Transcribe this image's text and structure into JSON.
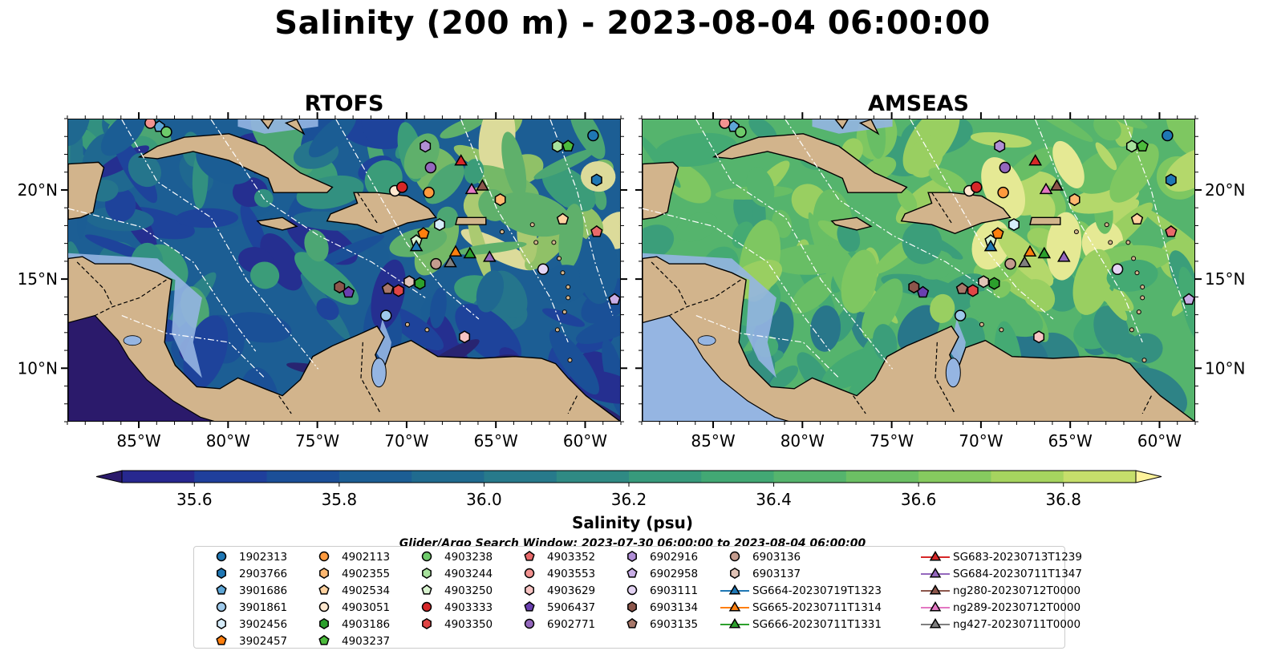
{
  "figure": {
    "title": "Salinity (200 m) - 2023-08-04 06:00:00",
    "colorbar_label": "Salinity (psu)",
    "search_window": "Glider/Argo Search Window: 2023-07-30 06:00:00 to 2023-08-04 06:00:00"
  },
  "chart_data": {
    "type": "heatmap",
    "panels": [
      {
        "name": "RTOFS",
        "tone": "fresh"
      },
      {
        "name": "AMSEAS",
        "tone": "salty"
      }
    ],
    "x_ticks": [
      "85°W",
      "80°W",
      "75°W",
      "70°W",
      "65°W",
      "60°W"
    ],
    "x_values": [
      -85,
      -80,
      -75,
      -70,
      -65,
      -60
    ],
    "y_ticks": [
      "20°N",
      "15°N",
      "10°N"
    ],
    "y_values": [
      20,
      15,
      10
    ],
    "xlim": [
      -89,
      -58
    ],
    "ylim": [
      7,
      24
    ],
    "colorbar": {
      "ticks": [
        "35.6",
        "35.8",
        "36.0",
        "36.2",
        "36.4",
        "36.6",
        "36.8"
      ],
      "tick_values": [
        35.6,
        35.8,
        36.0,
        36.2,
        36.4,
        36.6,
        36.8
      ],
      "range": [
        35.5,
        36.9
      ],
      "extend": "both",
      "colors": [
        "#2b1a6b",
        "#27288f",
        "#1f3f9c",
        "#1b4f98",
        "#1c5e94",
        "#206b8f",
        "#277a8b",
        "#2f8a84",
        "#379a7c",
        "#42a874",
        "#55b46d",
        "#6cc064",
        "#86ca5f",
        "#a6d45f",
        "#c6de6b",
        "#fff39b"
      ]
    },
    "legend": [
      {
        "label": "1902313",
        "color": "#1f77b4",
        "marker": "circle"
      },
      {
        "label": "2903766",
        "color": "#1f77b4",
        "marker": "hexagon"
      },
      {
        "label": "3901686",
        "color": "#5ea6d6",
        "marker": "pentagon"
      },
      {
        "label": "3901861",
        "color": "#9ec9ea",
        "marker": "circle"
      },
      {
        "label": "3902456",
        "color": "#d6ecfa",
        "marker": "hexagon"
      },
      {
        "label": "3902457",
        "color": "#ff7f0e",
        "marker": "pentagon"
      },
      {
        "label": "4902113",
        "color": "#ff9a3e",
        "marker": "circle"
      },
      {
        "label": "4902355",
        "color": "#ffb870",
        "marker": "hexagon"
      },
      {
        "label": "4902534",
        "color": "#ffd2a0",
        "marker": "pentagon"
      },
      {
        "label": "4903051",
        "color": "#ffe8cf",
        "marker": "circle"
      },
      {
        "label": "4903186",
        "color": "#2ca02c",
        "marker": "hexagon"
      },
      {
        "label": "4903237",
        "color": "#4cbb3c",
        "marker": "pentagon"
      },
      {
        "label": "4903238",
        "color": "#6ecb6a",
        "marker": "circle"
      },
      {
        "label": "4903244",
        "color": "#a7e19c",
        "marker": "hexagon"
      },
      {
        "label": "4903250",
        "color": "#d8f3cf",
        "marker": "pentagon"
      },
      {
        "label": "4903333",
        "color": "#d62728",
        "marker": "circle"
      },
      {
        "label": "4903350",
        "color": "#e04545",
        "marker": "hexagon"
      },
      {
        "label": "4903352",
        "color": "#e8696a",
        "marker": "pentagon"
      },
      {
        "label": "4903553",
        "color": "#f29290",
        "marker": "circle"
      },
      {
        "label": "4903629",
        "color": "#f8c4c3",
        "marker": "hexagon"
      },
      {
        "label": "5906437",
        "color": "#6a3fb0",
        "marker": "pentagon"
      },
      {
        "label": "6902771",
        "color": "#9467bd",
        "marker": "circle"
      },
      {
        "label": "6902916",
        "color": "#b08ed6",
        "marker": "hexagon"
      },
      {
        "label": "6902958",
        "color": "#c9aee6",
        "marker": "pentagon"
      },
      {
        "label": "6903111",
        "color": "#e4d4f4",
        "marker": "circle"
      },
      {
        "label": "6903134",
        "color": "#8c564b",
        "marker": "hexagon"
      },
      {
        "label": "6903135",
        "color": "#a8786a",
        "marker": "pentagon"
      },
      {
        "label": "6903136",
        "color": "#c49c8e",
        "marker": "circle"
      },
      {
        "label": "6903137",
        "color": "#e1c3b6",
        "marker": "hexagon"
      },
      {
        "label": "SG664-20230719T1323",
        "color": "#1f77b4",
        "marker": "triangle"
      },
      {
        "label": "SG665-20230711T1314",
        "color": "#ff7f0e",
        "marker": "triangle"
      },
      {
        "label": "SG666-20230711T1331",
        "color": "#2ca02c",
        "marker": "triangle"
      },
      {
        "label": "SG683-20230713T1239",
        "color": "#d62728",
        "marker": "triangle"
      },
      {
        "label": "SG684-20230711T1347",
        "color": "#9467bd",
        "marker": "triangle"
      },
      {
        "label": "ng280-20230712T0000",
        "color": "#8c564b",
        "marker": "triangle"
      },
      {
        "label": "ng289-20230712T0000",
        "color": "#e377c2",
        "marker": "triangle"
      },
      {
        "label": "ng427-20230711T0000",
        "color": "#7f7f7f",
        "marker": "triangle"
      }
    ],
    "observations": [
      {
        "label": "1902313",
        "lon": -59.6,
        "lat": 23.1
      },
      {
        "label": "2903766",
        "lon": -59.4,
        "lat": 20.6
      },
      {
        "label": "3901686",
        "lon": -83.9,
        "lat": 23.6
      },
      {
        "label": "3901861",
        "lon": -71.2,
        "lat": 13.0
      },
      {
        "label": "3902456",
        "lon": -68.2,
        "lat": 18.1
      },
      {
        "label": "3902457",
        "lon": -69.1,
        "lat": 17.6
      },
      {
        "label": "4902113",
        "lon": -68.8,
        "lat": 19.9
      },
      {
        "label": "4902355",
        "lon": -64.8,
        "lat": 19.5
      },
      {
        "label": "4902534",
        "lon": -61.3,
        "lat": 18.4
      },
      {
        "label": "4903051",
        "lon": -70.7,
        "lat": 20.0
      },
      {
        "label": "4903186",
        "lon": -69.3,
        "lat": 14.8
      },
      {
        "label": "4903237",
        "lon": -61.0,
        "lat": 22.5
      },
      {
        "label": "4903238",
        "lon": -83.5,
        "lat": 23.3
      },
      {
        "label": "4903244",
        "lon": -61.6,
        "lat": 22.5
      },
      {
        "label": "4903250",
        "lon": -69.5,
        "lat": 17.2
      },
      {
        "label": "4903333",
        "lon": -70.3,
        "lat": 20.2
      },
      {
        "label": "4903350",
        "lon": -70.5,
        "lat": 14.4
      },
      {
        "label": "4903352",
        "lon": -59.4,
        "lat": 17.7
      },
      {
        "label": "4903553",
        "lon": -84.4,
        "lat": 23.8
      },
      {
        "label": "4903629",
        "lon": -66.8,
        "lat": 11.8
      },
      {
        "label": "5906437",
        "lon": -73.3,
        "lat": 14.3
      },
      {
        "label": "6902771",
        "lon": -68.7,
        "lat": 21.3
      },
      {
        "label": "6902916",
        "lon": -69.0,
        "lat": 22.5
      },
      {
        "label": "6902958",
        "lon": -58.4,
        "lat": 13.9
      },
      {
        "label": "6903111",
        "lon": -62.4,
        "lat": 15.6
      },
      {
        "label": "6903134",
        "lon": -73.8,
        "lat": 14.6
      },
      {
        "label": "6903135",
        "lon": -71.1,
        "lat": 14.5
      },
      {
        "label": "6903136",
        "lon": -68.4,
        "lat": 15.9
      },
      {
        "label": "6903137",
        "lon": -69.9,
        "lat": 14.9
      },
      {
        "label": "SG664-20230719T1323",
        "lon": -69.5,
        "lat": 16.9
      },
      {
        "label": "SG665-20230711T1314",
        "lon": -67.3,
        "lat": 16.6
      },
      {
        "label": "SG666-20230711T1331",
        "lon": -66.5,
        "lat": 16.5
      },
      {
        "label": "SG683-20230713T1239",
        "lon": -67.0,
        "lat": 21.7
      },
      {
        "label": "SG684-20230711T1347",
        "lon": -65.4,
        "lat": 16.3
      },
      {
        "label": "ng280-20230712T0000",
        "lon": -65.8,
        "lat": 20.3
      },
      {
        "label": "ng289-20230712T0000",
        "lon": -66.4,
        "lat": 20.1
      },
      {
        "label": "ng427-20230711T0000",
        "lon": -67.6,
        "lat": 16.0
      }
    ]
  }
}
